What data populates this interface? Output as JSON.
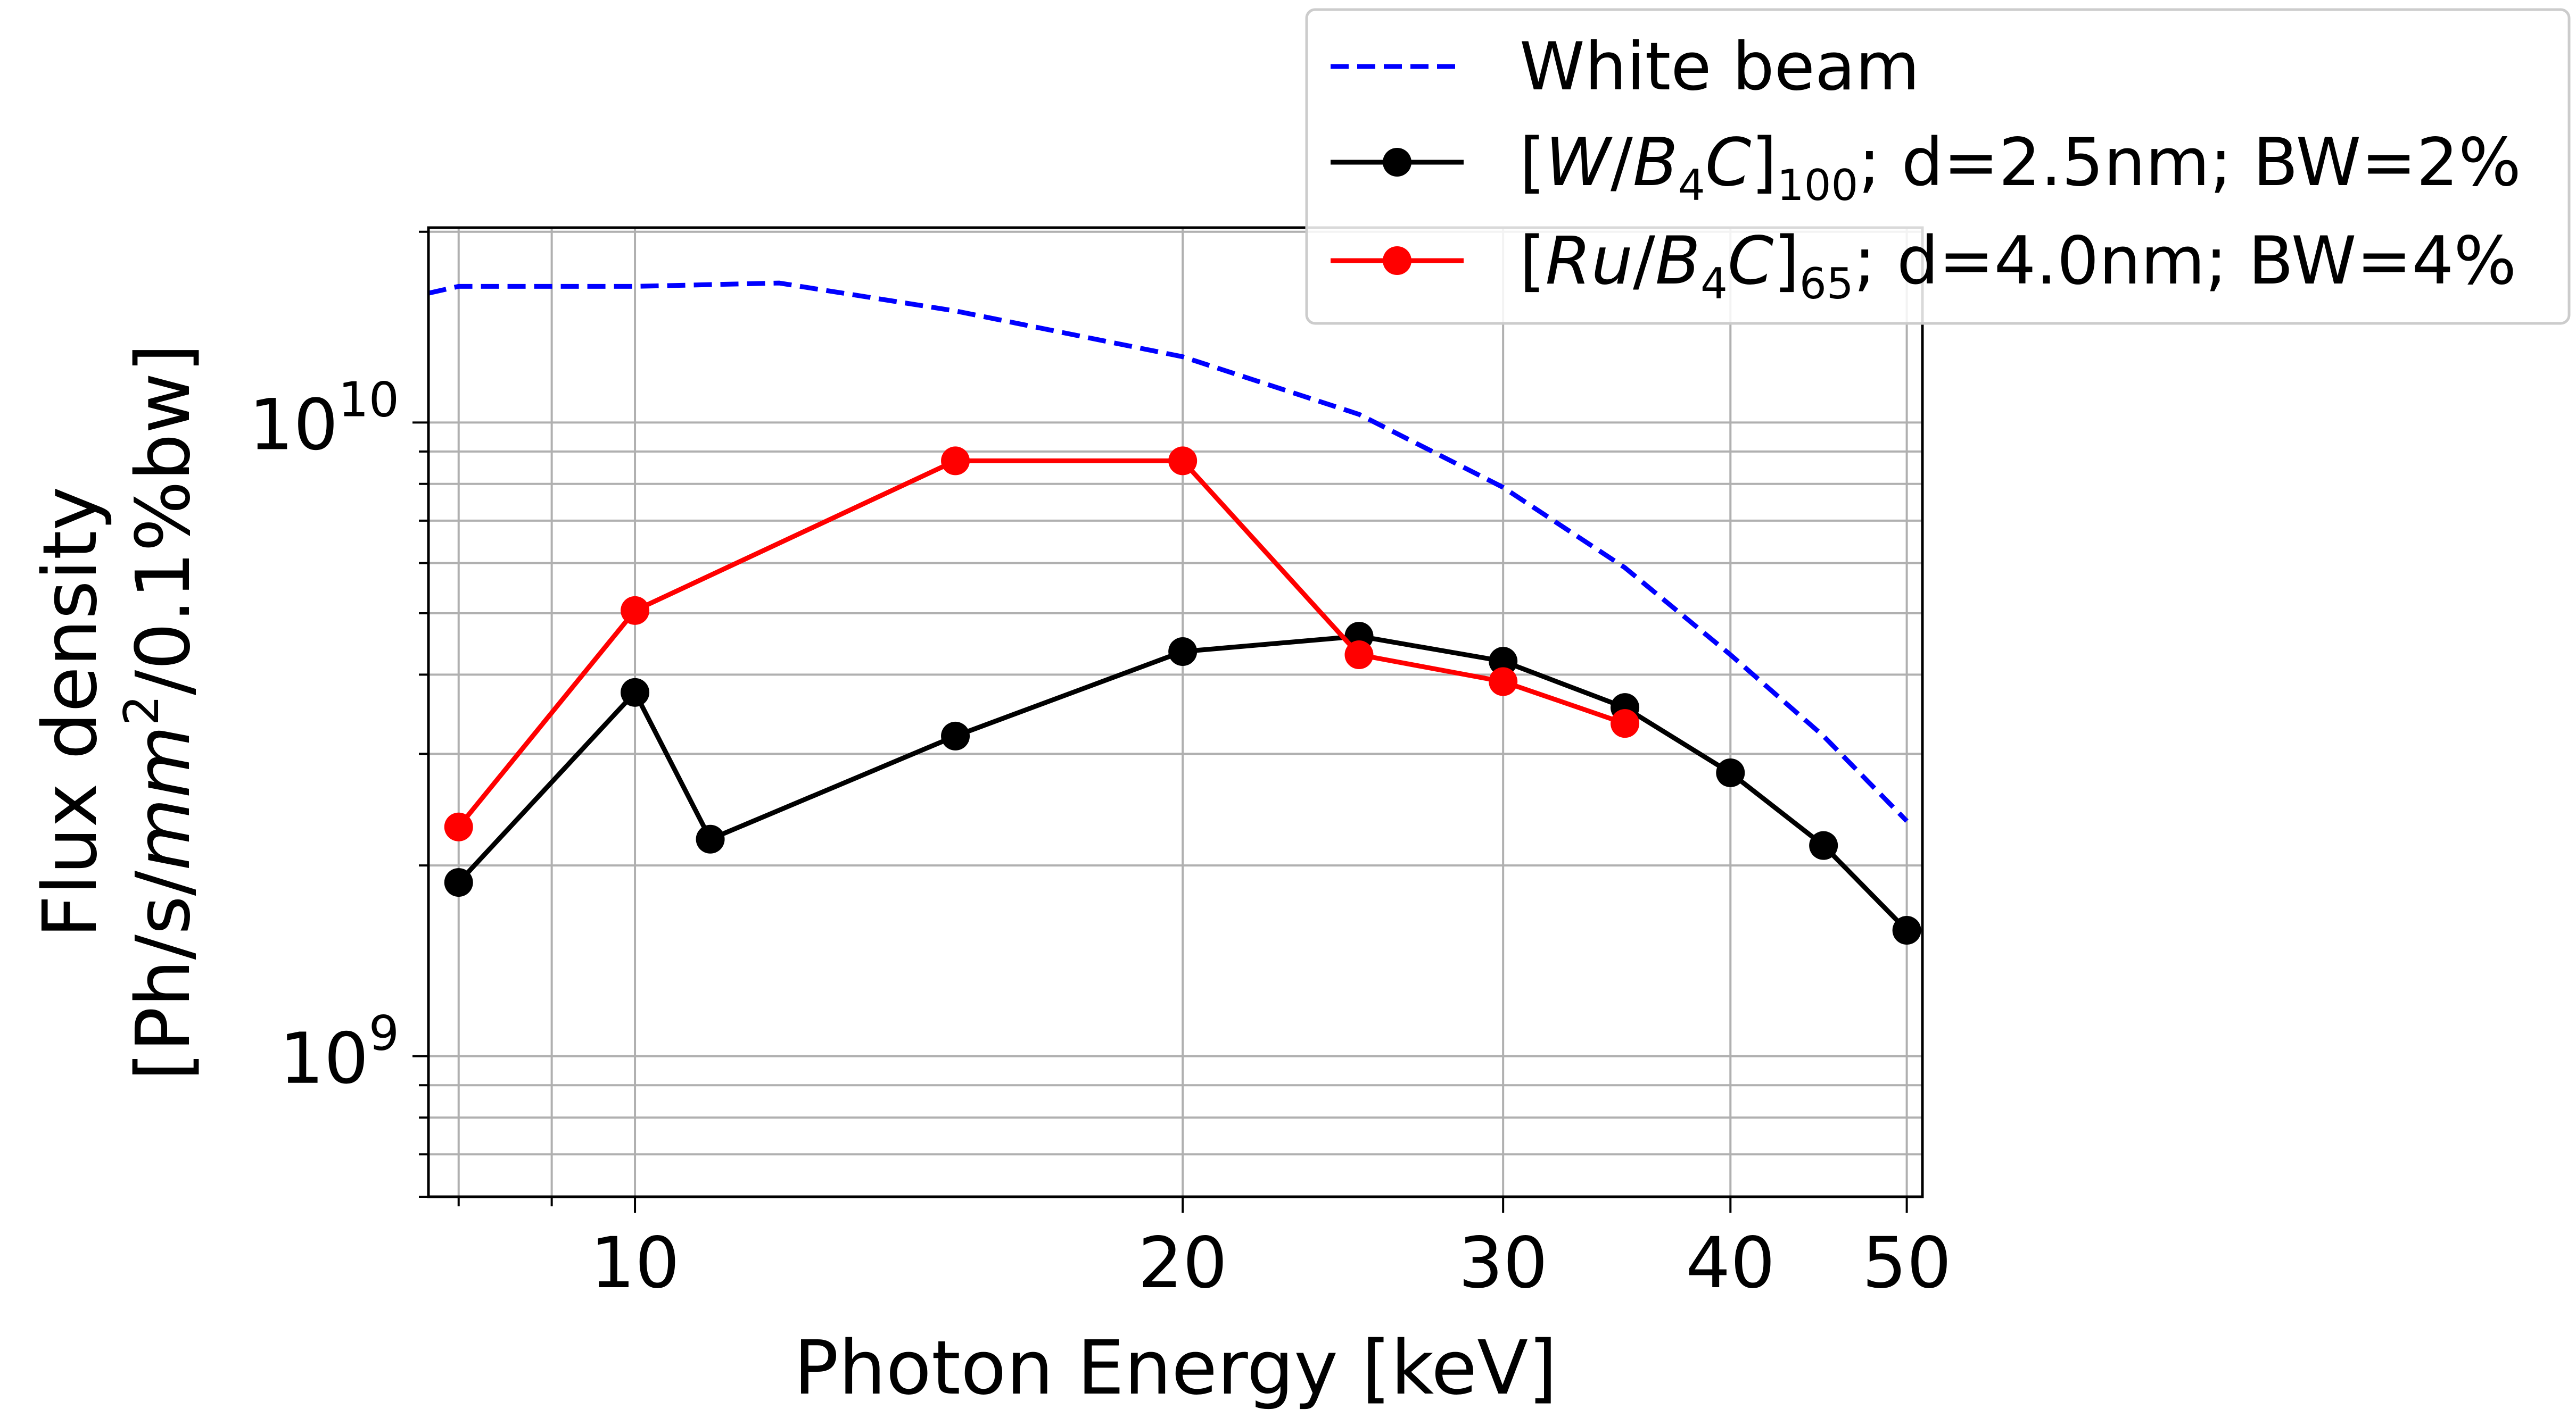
{
  "chart_data": {
    "type": "line",
    "xlabel": "Photon Energy [keV]",
    "ylabel_line1": "Flux density",
    "ylabel_line2": {
      "pre": "[Ph/s/",
      "unit": "mm",
      "power": "2",
      "post": "/0.1%bw]"
    },
    "x_scale": "log",
    "y_scale": "log",
    "xlim": [
      7.7,
      51
    ],
    "ylim": [
      600000000.0,
      20300000000.0
    ],
    "x_ticks": [
      {
        "value": 10,
        "label": "10"
      },
      {
        "value": 20,
        "label": "20"
      },
      {
        "value": 30,
        "label": "30"
      },
      {
        "value": 40,
        "label": "40"
      },
      {
        "value": 50,
        "label": "50"
      }
    ],
    "y_ticks": [
      {
        "value": 1000000000.0,
        "base": "10",
        "exp": "9"
      },
      {
        "value": 10000000000.0,
        "base": "10",
        "exp": "10"
      }
    ],
    "grid": true,
    "legend_position": "top-right",
    "series": [
      {
        "key": "white",
        "name": "White beam",
        "color": "#0000ff",
        "style": "dashed",
        "marker": "none",
        "x": [
          7.7,
          8,
          10,
          12,
          15,
          20,
          25,
          30,
          35,
          40,
          45,
          50
        ],
        "y": [
          16000000000.0,
          16400000000.0,
          16400000000.0,
          16600000000.0,
          15000000000.0,
          12700000000.0,
          10300000000.0,
          7900000000.0,
          5900000000.0,
          4300000000.0,
          3200000000.0,
          2350000000.0
        ]
      },
      {
        "key": "wb4c",
        "name": {
          "open": "[",
          "a": "W",
          "slash": "/",
          "b": "B",
          "b_sub": "4",
          "c": "C",
          "close": "]",
          "n": "100",
          "rest": "; d=2.5nm; BW=2%"
        },
        "color": "#000000",
        "style": "solid",
        "marker": "circle",
        "x": [
          8,
          10,
          11,
          15,
          20,
          25,
          30,
          35,
          40,
          45,
          50
        ],
        "y": [
          1880000000.0,
          3750000000.0,
          2200000000.0,
          3200000000.0,
          4350000000.0,
          4600000000.0,
          4200000000.0,
          3550000000.0,
          2800000000.0,
          2150000000.0,
          1580000000.0
        ]
      },
      {
        "key": "rub4c",
        "name": {
          "open": "[",
          "a": "Ru",
          "slash": "/",
          "b": "B",
          "b_sub": "4",
          "c": "C",
          "close": "]",
          "n": "65",
          "rest": "; d=4.0nm; BW=4%"
        },
        "color": "#ff0000",
        "style": "solid",
        "marker": "circle",
        "x": [
          8,
          10,
          15,
          20,
          25,
          30,
          35
        ],
        "y": [
          2300000000.0,
          5050000000.0,
          8700000000.0,
          8700000000.0,
          4300000000.0,
          3900000000.0,
          3350000000.0
        ]
      }
    ]
  }
}
